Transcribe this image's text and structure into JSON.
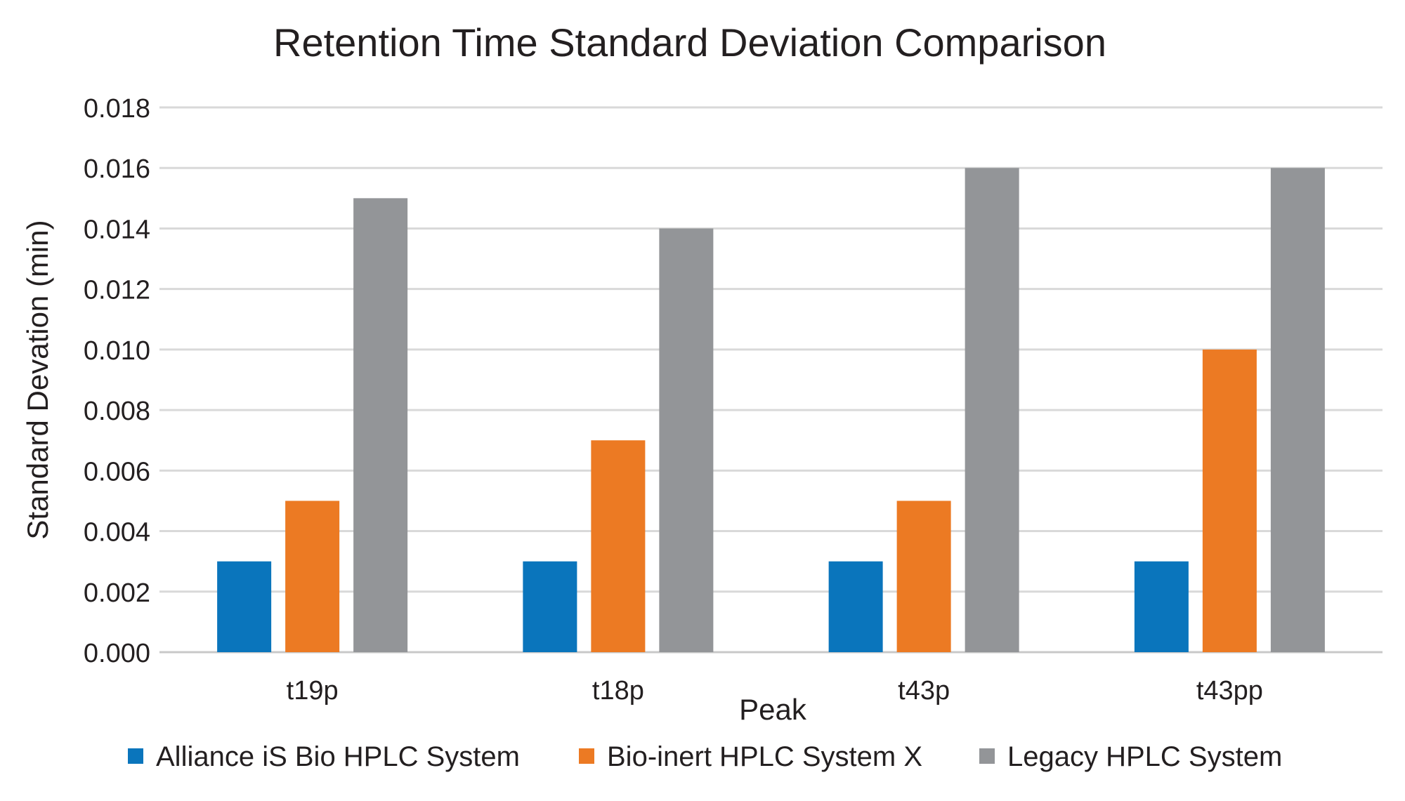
{
  "chart_data": {
    "type": "bar",
    "title": "Retention Time Standard Deviation Comparison",
    "xlabel": "Peak",
    "ylabel": "Standard Devation  (min)",
    "categories": [
      "t19p",
      "t18p",
      "t43p",
      "t43pp"
    ],
    "series": [
      {
        "name": "Alliance iS Bio HPLC System",
        "color": "#0a75bc",
        "values": [
          0.003,
          0.003,
          0.003,
          0.003
        ]
      },
      {
        "name": "Bio-inert HPLC System X",
        "color": "#ec7a23",
        "values": [
          0.005,
          0.007,
          0.005,
          0.01
        ]
      },
      {
        "name": "Legacy HPLC System",
        "color": "#939598",
        "values": [
          0.015,
          0.014,
          0.016,
          0.016
        ]
      }
    ],
    "ylim": [
      0,
      0.018
    ],
    "yticks": [
      "0.000",
      "0.002",
      "0.004",
      "0.006",
      "0.008",
      "0.010",
      "0.012",
      "0.014",
      "0.016",
      "0.018"
    ],
    "grid": true,
    "legend_position": "bottom"
  }
}
